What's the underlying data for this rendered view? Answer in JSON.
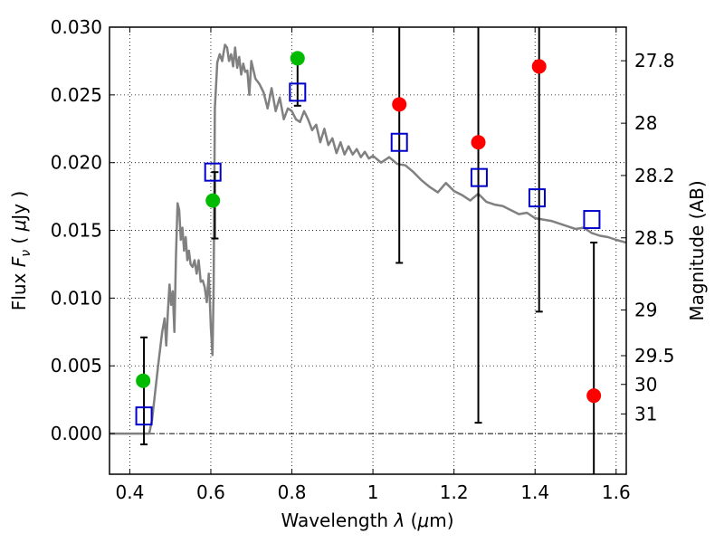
{
  "chart_data": {
    "type": "scatter",
    "xlabel": "Wavelength λ (μm)",
    "ylabel": "Flux F_ν (μJy)",
    "y2label": "Magnitude (AB)",
    "xlim": [
      0.35,
      1.625
    ],
    "ylim": [
      -0.003,
      0.03
    ],
    "grid": true,
    "x_ticks": [
      0.4,
      0.6,
      0.8,
      1.0,
      1.2,
      1.4,
      1.6
    ],
    "x_tick_labels": [
      "0.4",
      "0.6",
      "0.8",
      "1",
      "1.2",
      "1.4",
      "1.6"
    ],
    "y_ticks": [
      0.0,
      0.005,
      0.01,
      0.015,
      0.02,
      0.025,
      0.03
    ],
    "y_tick_labels": [
      "0.000",
      "0.005",
      "0.010",
      "0.015",
      "0.020",
      "0.025",
      "0.030"
    ],
    "mag_ticks": [
      {
        "label": "27.8",
        "flux": 0.02752
      },
      {
        "label": "28",
        "flux": 0.02291
      },
      {
        "label": "28.2",
        "flux": 0.01905
      },
      {
        "label": "28.5",
        "flux": 0.01445
      },
      {
        "label": "29",
        "flux": 0.00912
      },
      {
        "label": "29.5",
        "flux": 0.00575
      },
      {
        "label": "30",
        "flux": 0.00363
      },
      {
        "label": "31",
        "flux": 0.00145
      }
    ],
    "series": [
      {
        "type": "line",
        "color": "#808080",
        "x": [
          0.35,
          0.448,
          0.455,
          0.47,
          0.48,
          0.486,
          0.49,
          0.494,
          0.498,
          0.502,
          0.506,
          0.51,
          0.514,
          0.518,
          0.522,
          0.526,
          0.53,
          0.534,
          0.538,
          0.542,
          0.546,
          0.55,
          0.555,
          0.56,
          0.565,
          0.57,
          0.575,
          0.58,
          0.585,
          0.59,
          0.595,
          0.6,
          0.604,
          0.607,
          0.61,
          0.616,
          0.622,
          0.628,
          0.635,
          0.64,
          0.645,
          0.65,
          0.655,
          0.66,
          0.665,
          0.67,
          0.675,
          0.68,
          0.685,
          0.69,
          0.695,
          0.7,
          0.71,
          0.72,
          0.73,
          0.74,
          0.75,
          0.76,
          0.77,
          0.78,
          0.79,
          0.8,
          0.81,
          0.82,
          0.83,
          0.84,
          0.85,
          0.86,
          0.87,
          0.88,
          0.89,
          0.9,
          0.91,
          0.92,
          0.93,
          0.94,
          0.95,
          0.96,
          0.97,
          0.98,
          0.99,
          1.0,
          1.02,
          1.04,
          1.06,
          1.08,
          1.1,
          1.12,
          1.14,
          1.16,
          1.18,
          1.2,
          1.22,
          1.24,
          1.26,
          1.28,
          1.3,
          1.32,
          1.34,
          1.36,
          1.38,
          1.4,
          1.42,
          1.44,
          1.46,
          1.48,
          1.5,
          1.52,
          1.54,
          1.56,
          1.58,
          1.6,
          1.625
        ],
        "y": [
          0.0,
          0.0,
          0.001,
          0.005,
          0.0075,
          0.0085,
          0.0065,
          0.009,
          0.011,
          0.0095,
          0.0105,
          0.0075,
          0.013,
          0.017,
          0.0165,
          0.0143,
          0.0152,
          0.0135,
          0.0145,
          0.0128,
          0.0135,
          0.0125,
          0.0123,
          0.0128,
          0.0118,
          0.0128,
          0.0112,
          0.0113,
          0.0108,
          0.0097,
          0.0118,
          0.0078,
          0.0058,
          0.011,
          0.024,
          0.0274,
          0.028,
          0.0275,
          0.0287,
          0.0285,
          0.0275,
          0.028,
          0.0271,
          0.0285,
          0.027,
          0.0278,
          0.0265,
          0.0273,
          0.0267,
          0.0268,
          0.025,
          0.0275,
          0.0262,
          0.0258,
          0.0252,
          0.024,
          0.0255,
          0.0238,
          0.0248,
          0.0232,
          0.024,
          0.0238,
          0.0232,
          0.023,
          0.0238,
          0.0232,
          0.0224,
          0.0228,
          0.0215,
          0.0225,
          0.0213,
          0.0218,
          0.0207,
          0.0215,
          0.0206,
          0.0212,
          0.0206,
          0.021,
          0.0204,
          0.0208,
          0.0203,
          0.0205,
          0.02,
          0.0204,
          0.0199,
          0.0198,
          0.0193,
          0.0187,
          0.0182,
          0.0178,
          0.0185,
          0.0179,
          0.0176,
          0.0172,
          0.0177,
          0.0171,
          0.0169,
          0.0168,
          0.0165,
          0.0162,
          0.0163,
          0.0159,
          0.0158,
          0.0157,
          0.0155,
          0.0153,
          0.0151,
          0.0152,
          0.0148,
          0.0146,
          0.0145,
          0.0143,
          0.0141
        ]
      },
      {
        "type": "points",
        "marker": "circle",
        "color": "#00bb00",
        "x": [
          0.433,
          0.605,
          0.814
        ],
        "y": [
          0.0039,
          0.0172,
          0.0277
        ]
      },
      {
        "type": "points",
        "marker": "circle",
        "color": "#ff0000",
        "x": [
          1.065,
          1.26,
          1.41,
          1.545
        ],
        "y": [
          0.0243,
          0.0215,
          0.0271,
          0.0028
        ]
      },
      {
        "type": "points",
        "marker": "open-square",
        "color": "#0000cc",
        "x": [
          0.435,
          0.605,
          0.814,
          1.065,
          1.262,
          1.405,
          1.54
        ],
        "y": [
          0.0013,
          0.0193,
          0.0252,
          0.0215,
          0.0189,
          0.0174,
          0.0158
        ]
      }
    ],
    "errorbars": [
      {
        "x": 0.435,
        "y_low": -0.0008,
        "y_high": 0.0071
      },
      {
        "x": 0.61,
        "y_low": 0.0144,
        "y_high": 0.0193
      },
      {
        "x": 0.814,
        "y_low": 0.0242,
        "y_high": 0.0277
      },
      {
        "x": 1.065,
        "y_low": 0.0126,
        "y_high": 0.031
      },
      {
        "x": 1.26,
        "y_low": 0.0008,
        "y_high": 0.031
      },
      {
        "x": 1.41,
        "y_low": 0.009,
        "y_high": 0.031
      },
      {
        "x": 1.545,
        "y_low": -0.004,
        "y_high": 0.0141
      }
    ]
  }
}
